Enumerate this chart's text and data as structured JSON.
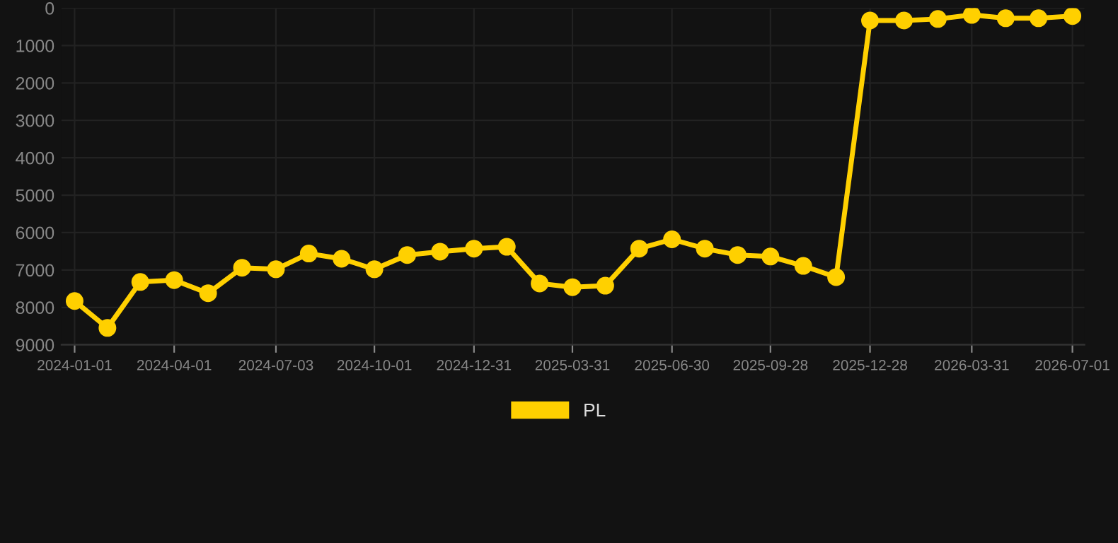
{
  "chart_data": {
    "type": "line",
    "x": [
      "2024-01-01",
      "2024-01-31",
      "2024-03-01",
      "2024-04-01",
      "2024-05-02",
      "2024-06-02",
      "2024-07-03",
      "2024-08-02",
      "2024-09-01",
      "2024-10-01",
      "2024-10-31",
      "2024-11-30",
      "2024-12-31",
      "2025-01-30",
      "2025-03-01",
      "2025-03-31",
      "2025-04-30",
      "2025-05-31",
      "2025-06-30",
      "2025-07-30",
      "2025-08-29",
      "2025-09-28",
      "2025-10-28",
      "2025-11-27",
      "2025-12-28",
      "2026-01-28",
      "2026-02-28",
      "2026-03-31",
      "2026-05-01",
      "2026-05-31",
      "2026-07-01"
    ],
    "series": [
      {
        "name": "PL",
        "color": "#ffd000",
        "values": [
          7830,
          8550,
          7320,
          7270,
          7620,
          6940,
          6980,
          6560,
          6700,
          6980,
          6600,
          6510,
          6430,
          6380,
          7360,
          7460,
          7420,
          6430,
          6180,
          6430,
          6600,
          6640,
          6890,
          7190,
          330,
          330,
          290,
          180,
          270,
          270,
          210
        ]
      }
    ],
    "ylim": [
      9000,
      0
    ],
    "yticks": [
      0,
      1000,
      2000,
      3000,
      4000,
      5000,
      6000,
      7000,
      8000,
      9000
    ],
    "xlim": [
      "2023-12-20",
      "2026-07-12"
    ],
    "xticks": [
      {
        "value": "2024-01-01",
        "label": "2024-01-01"
      },
      {
        "value": "2024-04-01",
        "label": "2024-04-01"
      },
      {
        "value": "2024-07-03",
        "label": "2024-07-03"
      },
      {
        "value": "2024-10-01",
        "label": "2024-10-01"
      },
      {
        "value": "2024-12-31",
        "label": "2024-12-31"
      },
      {
        "value": "2025-03-31",
        "label": "2025-03-31"
      },
      {
        "value": "2025-06-30",
        "label": "2025-06-30"
      },
      {
        "value": "2025-09-28",
        "label": "2025-09-28"
      },
      {
        "value": "2025-12-28",
        "label": "2025-12-28"
      },
      {
        "value": "2026-03-31",
        "label": "2026-03-31"
      },
      {
        "value": "2026-07-01",
        "label": "2026-07-01"
      }
    ],
    "grid": true,
    "legend": "bottom",
    "marker": "circle",
    "line_style": "solid"
  }
}
